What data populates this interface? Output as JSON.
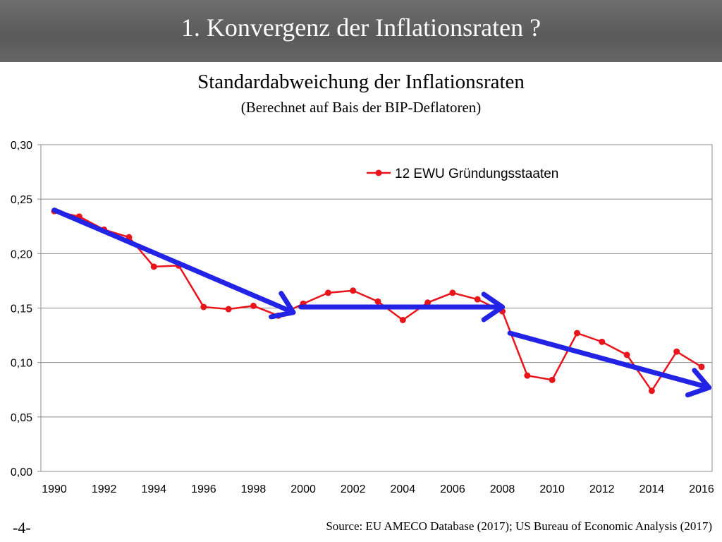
{
  "header": {
    "title": "1. Konvergenz der Inflationsraten ?"
  },
  "footer": {
    "page_number": "-4-",
    "source": "Source: EU AMECO Database (2017); US Bureau of Economic Analysis (2017)"
  },
  "colors": {
    "series": "#e8131b",
    "trend_arrows": "#2323e6",
    "header_bg": "#626262"
  },
  "chart_data": {
    "type": "line",
    "title": "Standardabweichung der Inflationsraten",
    "subtitle": "(Berechnet auf Bais der BIP-Deflatoren)",
    "xlabel": "",
    "ylabel": "",
    "x_ticks": [
      "1990",
      "1992",
      "1994",
      "1996",
      "1998",
      "2000",
      "2002",
      "2004",
      "2006",
      "2008",
      "2010",
      "2012",
      "2014",
      "2016"
    ],
    "y_ticks": [
      "0,00",
      "0,05",
      "0,10",
      "0,15",
      "0,20",
      "0,25",
      "0,30"
    ],
    "ylim": [
      0,
      0.3
    ],
    "xlim": [
      1990,
      2016
    ],
    "grid": "horizontal",
    "legend": "top-right",
    "series": [
      {
        "name": "12 EWU Gründungsstaaten",
        "x": [
          1990,
          1991,
          1992,
          1993,
          1994,
          1995,
          1996,
          1997,
          1998,
          1999,
          2000,
          2001,
          2002,
          2003,
          2004,
          2005,
          2006,
          2007,
          2008,
          2009,
          2010,
          2011,
          2012,
          2013,
          2014,
          2015,
          2016
        ],
        "values": [
          0.239,
          0.234,
          0.222,
          0.215,
          0.188,
          0.189,
          0.151,
          0.149,
          0.152,
          0.143,
          0.154,
          0.164,
          0.166,
          0.156,
          0.139,
          0.155,
          0.164,
          0.158,
          0.147,
          0.088,
          0.084,
          0.127,
          0.119,
          0.107,
          0.074,
          0.11,
          0.096
        ]
      }
    ],
    "trend_arrows": [
      {
        "from": [
          1990,
          0.24
        ],
        "to": [
          1999.6,
          0.146
        ]
      },
      {
        "from": [
          1999.9,
          0.151
        ],
        "to": [
          2008.0,
          0.151
        ]
      },
      {
        "from": [
          2008.3,
          0.127
        ],
        "to": [
          2016.3,
          0.077
        ]
      }
    ]
  }
}
